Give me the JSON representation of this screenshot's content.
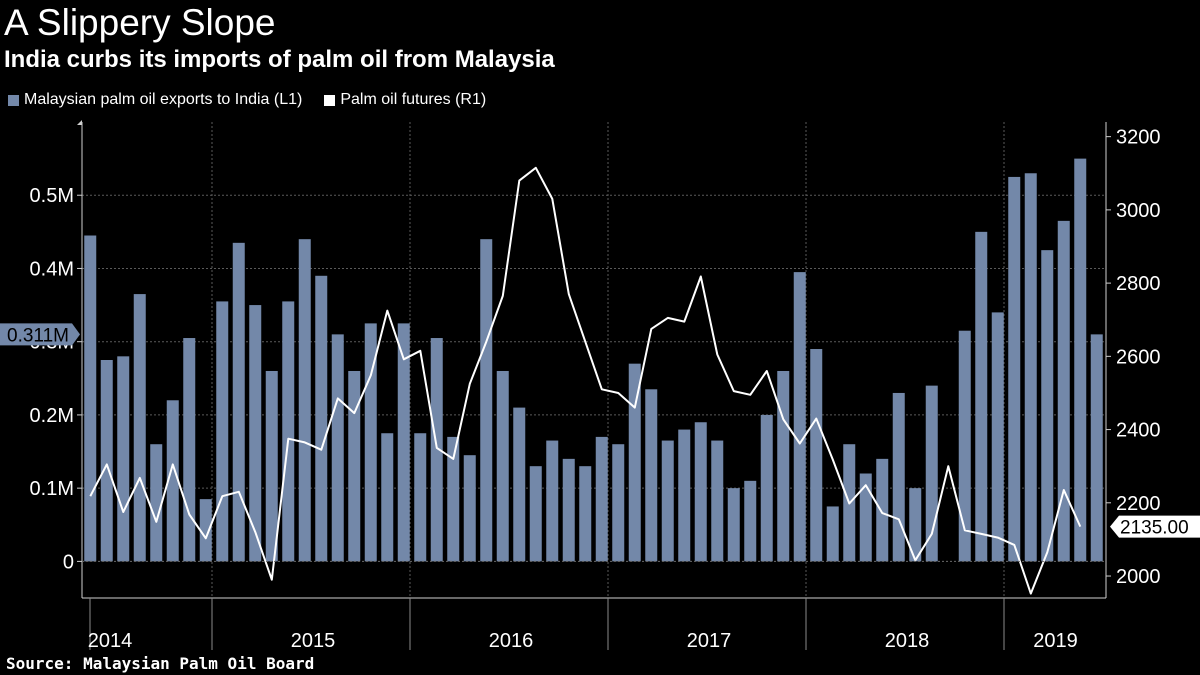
{
  "title": "A Slippery Slope",
  "subtitle": "India curbs its imports of palm oil from Malaysia",
  "legend": {
    "bars_label": "Malaysian palm oil exports to India (L1)",
    "line_label": "Palm oil futures (R1)"
  },
  "source": "Source: Malaysian Palm Oil Board",
  "colors": {
    "bars": "#7388a9",
    "line": "#ffffff",
    "background": "#000000",
    "grid": "#5a5a5a"
  },
  "chart_data": {
    "type": "bar+line",
    "title": "A Slippery Slope",
    "left_axis": {
      "range": [
        -0.05,
        0.6
      ],
      "ticks": [
        0,
        0.1,
        0.2,
        0.3,
        0.4,
        0.5
      ],
      "tick_labels": [
        "0",
        "0.1M",
        "0.2M",
        "0.3M",
        "0.4M",
        "0.5M"
      ]
    },
    "right_axis": {
      "range": [
        1940,
        3240
      ],
      "ticks": [
        2000,
        2200,
        2400,
        2600,
        2800,
        3000,
        3200
      ],
      "tick_labels": [
        "2000",
        "2200",
        "2400",
        "2600",
        "2800",
        "3000",
        "3200"
      ]
    },
    "x_axis": {
      "year_labels": [
        "2014",
        "2015",
        "2016",
        "2017",
        "2018",
        "2019"
      ]
    },
    "bars": {
      "name": "Malaysian palm oil exports to India (L1)",
      "unit": "million tonnes",
      "values": [
        0.445,
        0.275,
        0.28,
        0.365,
        0.16,
        0.22,
        0.305,
        0.085,
        0.355,
        0.435,
        0.35,
        0.26,
        0.355,
        0.44,
        0.39,
        0.31,
        0.26,
        0.325,
        0.175,
        0.325,
        0.175,
        0.305,
        0.17,
        0.145,
        0.44,
        0.26,
        0.21,
        0.13,
        0.165,
        0.14,
        0.13,
        0.17,
        0.16,
        0.27,
        0.235,
        0.165,
        0.18,
        0.19,
        0.165,
        0.1,
        0.11,
        0.2,
        0.26,
        0.395,
        0.29,
        0.075,
        0.16,
        0.12,
        0.14,
        0.23,
        0.1,
        0.24,
        null,
        0.315,
        0.45,
        0.34,
        0.525,
        0.53,
        0.425,
        0.465,
        0.55,
        0.31
      ],
      "last_value_label": "0.311M"
    },
    "line": {
      "name": "Palm oil futures (R1)",
      "values": [
        2218,
        2305,
        2175,
        2268,
        2148,
        2305,
        2168,
        2103,
        2218,
        2230,
        2120,
        1990,
        2375,
        2365,
        2345,
        2485,
        2445,
        2548,
        2725,
        2592,
        2615,
        2350,
        2320,
        2525,
        2640,
        2765,
        3080,
        3115,
        3030,
        2770,
        2640,
        2510,
        2500,
        2460,
        2675,
        2705,
        2695,
        2818,
        2605,
        2505,
        2495,
        2560,
        2428,
        2362,
        2430,
        2318,
        2198,
        2248,
        2172,
        2155,
        2043,
        2115,
        2300,
        2125,
        2115,
        2105,
        2085,
        1952,
        2065,
        2235,
        2135
      ],
      "last_value_label": "2135.00"
    }
  }
}
